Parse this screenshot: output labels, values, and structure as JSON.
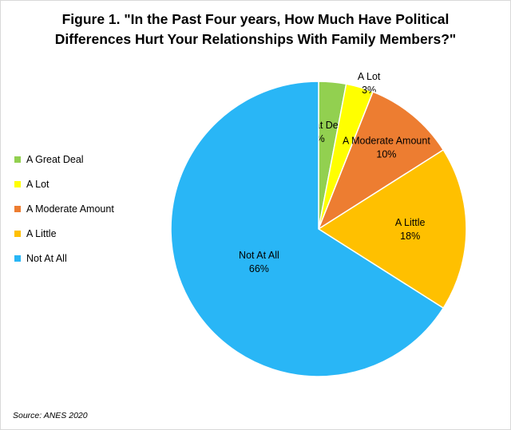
{
  "chart_data": {
    "type": "pie",
    "title_lines": [
      "Figure 1. \"In the Past Four years, How Much Have Political",
      "Differences Hurt Your Relationships With Family Members?\""
    ],
    "categories": [
      "A Great Deal",
      "A Lot",
      "A Moderate Amount",
      "A Little",
      "Not At All"
    ],
    "values": [
      3,
      3,
      10,
      18,
      66
    ],
    "labels": [
      "3%",
      "3%",
      "10%",
      "18%",
      "66%"
    ],
    "colors": [
      "#92d050",
      "#ffff00",
      "#ed7d31",
      "#ffc000",
      "#29b6f6"
    ],
    "legend_position": "left",
    "source": "Source: ANES 2020"
  }
}
